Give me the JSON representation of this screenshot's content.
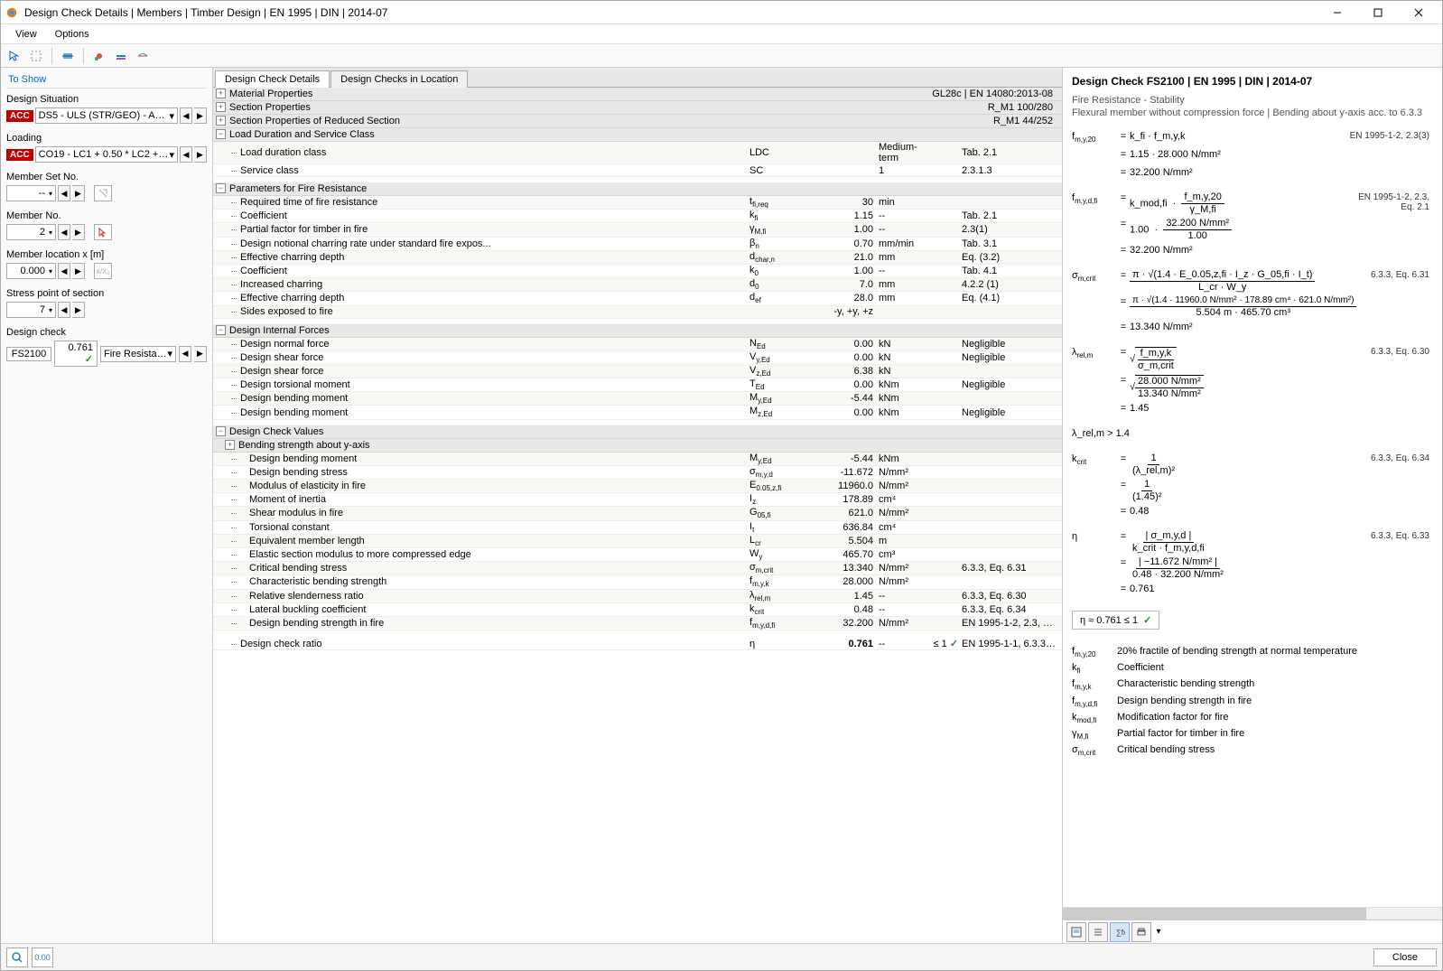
{
  "window": {
    "title": "Design Check Details | Members | Timber Design | EN 1995 | DIN | 2014-07"
  },
  "menu": {
    "view": "View",
    "options": "Options"
  },
  "left": {
    "toshow": "To Show",
    "design_situation_label": "Design Situation",
    "ds_badge": "ACC",
    "ds_value": "DS5 - ULS (STR/GEO) - Accident...",
    "loading_label": "Loading",
    "loading_badge": "ACC",
    "loading_value": "CO19 - LC1 + 0.50 * LC2 + 0.50 ...",
    "member_set_label": "Member Set No.",
    "member_set_value": "--",
    "member_no_label": "Member No.",
    "member_no_value": "2",
    "member_loc_label": "Member location x [m]",
    "member_loc_value": "0.000",
    "stress_point_label": "Stress point of section",
    "stress_point_value": "7",
    "design_check_label": "Design check",
    "dc_code": "FS2100",
    "dc_val": "0.761",
    "dc_desc": "Fire Resistance - ..."
  },
  "tabs": {
    "t1": "Design Check Details",
    "t2": "Design Checks in Location"
  },
  "sections": {
    "mat_props": "Material Properties",
    "mat_props_right": "GL28c | EN 14080:2013-08",
    "sec_props": "Section Properties",
    "sec_props_right": "R_M1 100/280",
    "sec_props_red": "Section Properties of Reduced Section",
    "sec_props_red_right": "R_M1 44/252",
    "load_dur": "Load Duration and Service Class",
    "ldc_label": "Load duration class",
    "ldc_sym": "LDC",
    "ldc_val": "Medium-term",
    "ldc_ref": "Tab. 2.1",
    "sc_label": "Service class",
    "sc_sym": "SC",
    "sc_val": "1",
    "sc_ref": "2.3.1.3",
    "fire_params": "Parameters for Fire Resistance",
    "fire": [
      {
        "l": "Required time of fire resistance",
        "s": "t_fi,req",
        "su": "fi,req",
        "v": "30",
        "u": "min",
        "r": ""
      },
      {
        "l": "Coefficient",
        "s": "k_fi",
        "su": "fi",
        "v": "1.15",
        "u": "--",
        "r": "Tab. 2.1"
      },
      {
        "l": "Partial factor for timber in fire",
        "s": "γ_M,fi",
        "su": "M,fi",
        "v": "1.00",
        "u": "--",
        "r": "2.3(1)"
      },
      {
        "l": "Design notional charring rate under standard fire expos...",
        "s": "β_n",
        "su": "n",
        "v": "0.70",
        "u": "mm/min",
        "r": "Tab. 3.1"
      },
      {
        "l": "Effective charring depth",
        "s": "d_char,n",
        "su": "char,n",
        "v": "21.0",
        "u": "mm",
        "r": "Eq. (3.2)"
      },
      {
        "l": "Coefficient",
        "s": "k_0",
        "su": "0",
        "v": "1.00",
        "u": "--",
        "r": "Tab. 4.1"
      },
      {
        "l": "Increased charring",
        "s": "d_0",
        "su": "0",
        "v": "7.0",
        "u": "mm",
        "r": "4.2.2 (1)"
      },
      {
        "l": "Effective charring depth",
        "s": "d_ef",
        "su": "ef",
        "v": "28.0",
        "u": "mm",
        "r": "Eq. (4.1)"
      },
      {
        "l": "Sides exposed to fire",
        "s": "",
        "su": "",
        "v": "-y, +y, +z",
        "u": "",
        "r": ""
      }
    ],
    "dif": "Design Internal Forces",
    "forces": [
      {
        "l": "Design normal force",
        "s": "N",
        "su": "Ed",
        "v": "0.00",
        "u": "kN",
        "r": "Negligible"
      },
      {
        "l": "Design shear force",
        "s": "V",
        "su": "y,Ed",
        "v": "0.00",
        "u": "kN",
        "r": "Negligible"
      },
      {
        "l": "Design shear force",
        "s": "V",
        "su": "z,Ed",
        "v": "6.38",
        "u": "kN",
        "r": ""
      },
      {
        "l": "Design torsional moment",
        "s": "T",
        "su": "Ed",
        "v": "0.00",
        "u": "kNm",
        "r": "Negligible"
      },
      {
        "l": "Design bending moment",
        "s": "M",
        "su": "y,Ed",
        "v": "-5.44",
        "u": "kNm",
        "r": ""
      },
      {
        "l": "Design bending moment",
        "s": "M",
        "su": "z,Ed",
        "v": "0.00",
        "u": "kNm",
        "r": "Negligible"
      }
    ],
    "dcv": "Design Check Values",
    "bend": "Bending strength about y-axis",
    "values": [
      {
        "l": "Design bending moment",
        "s": "M",
        "su": "y,Ed",
        "v": "-5.44",
        "u": "kNm",
        "r": ""
      },
      {
        "l": "Design bending stress",
        "s": "σ",
        "su": "m,y,d",
        "v": "-11.672",
        "u": "N/mm²",
        "r": ""
      },
      {
        "l": "Modulus of elasticity in fire",
        "s": "E",
        "su": "0.05,z,fi",
        "v": "11960.0",
        "u": "N/mm²",
        "r": ""
      },
      {
        "l": "Moment of inertia",
        "s": "I",
        "su": "z",
        "v": "178.89",
        "u": "cm⁴",
        "r": ""
      },
      {
        "l": "Shear modulus in fire",
        "s": "G",
        "su": "05,fi",
        "v": "621.0",
        "u": "N/mm²",
        "r": ""
      },
      {
        "l": "Torsional constant",
        "s": "I",
        "su": "t",
        "v": "636.84",
        "u": "cm⁴",
        "r": ""
      },
      {
        "l": "Equivalent member length",
        "s": "L",
        "su": "cr",
        "v": "5.504",
        "u": "m",
        "r": ""
      },
      {
        "l": "Elastic section modulus to more compressed edge",
        "s": "W",
        "su": "y",
        "v": "465.70",
        "u": "cm³",
        "r": ""
      },
      {
        "l": "Critical bending stress",
        "s": "σ",
        "su": "m,crit",
        "v": "13.340",
        "u": "N/mm²",
        "r": "6.3.3, Eq. 6.31"
      },
      {
        "l": "Characteristic bending strength",
        "s": "f",
        "su": "m,y,k",
        "v": "28.000",
        "u": "N/mm²",
        "r": ""
      },
      {
        "l": "Relative slenderness ratio",
        "s": "λ",
        "su": "rel,m",
        "v": "1.45",
        "u": "--",
        "r": "6.3.3, Eq. 6.30"
      },
      {
        "l": "Lateral buckling coefficient",
        "s": "k",
        "su": "crit",
        "v": "0.48",
        "u": "--",
        "r": "6.3.3, Eq. 6.34"
      },
      {
        "l": "Design bending strength in fire",
        "s": "f",
        "su": "m,y,d,fi",
        "v": "32.200",
        "u": "N/mm²",
        "r": "EN 1995-1-2, 2.3, Eq. 2.1"
      }
    ],
    "ratio": {
      "l": "Design check ratio",
      "s": "η",
      "v": "0.761",
      "u": "--",
      "cond": "≤ 1",
      "r": "EN 1995-1-1, 6.3.3, Eq. 6..."
    }
  },
  "right": {
    "title": "Design Check FS2100 | EN 1995 | DIN | 2014-07",
    "sub1": "Fire Resistance - Stability",
    "sub2": "Flexural member without compression force | Bending about y-axis acc. to 6.3.3",
    "f1_sym": "f_m,y,20",
    "f1_ref": "EN 1995-1-2, 2.3(3)",
    "f1a": "k_fi  ·  f_m,y,k",
    "f1b": "1.15  ·  28.000 N/mm²",
    "f1c": "32.200 N/mm²",
    "f2_sym": "f_m,y,d,fi",
    "f2_ref": "EN 1995-1-2, 2.3, Eq. 2.1",
    "f2a_l": "k_mod,fi",
    "f2a_num": "f_m,y,20",
    "f2a_den": "γ_M,fi",
    "f2b_l": "1.00",
    "f2b_num": "32.200 N/mm²",
    "f2b_den": "1.00",
    "f2c": "32.200 N/mm²",
    "f3_sym": "σ_m,crit",
    "f3_ref": "6.3.3, Eq. 6.31",
    "f3a_num": "π  ·  √(1.4  ·  E_0.05,z,fi  ·  I_z  ·  G_05,fi  ·  I_t)",
    "f3a_den": "L_cr  ·  W_y",
    "f3b_num": "π  ·  √(1.4  ·  11960.0 N/mm²  ·  178.89 cm⁴  ·  621.0 N/mm²)",
    "f3b_den": "5.504 m  ·  465.70 cm³",
    "f3c": "13.340 N/mm²",
    "f4_sym": "λ_rel,m",
    "f4_ref": "6.3.3, Eq. 6.30",
    "f4a_num": "f_m,y,k",
    "f4a_den": "σ_m,crit",
    "f4b_num": "28.000 N/mm²",
    "f4b_den": "13.340 N/mm²",
    "f4c": "1.45",
    "f5": "λ_rel,m  >  1.4",
    "f6_sym": "k_crit",
    "f6_ref": "6.3.3, Eq. 6.34",
    "f6a_num": "1",
    "f6a_den": "(λ_rel,m)²",
    "f6b_num": "1",
    "f6b_den": "(1.45)²",
    "f6c": "0.48",
    "f7_sym": "η",
    "f7_ref": "6.3.3, Eq. 6.33",
    "f7a_num": "| σ_m,y,d |",
    "f7a_den": "k_crit  ·  f_m,y,d,fi",
    "f7b_num": "| −11.672 N/mm² |",
    "f7b_den": "0.48  ·  32.200 N/mm²",
    "f7c": "0.761",
    "final": "η    ≈    0.761  ≤ 1",
    "legend": [
      {
        "s": "f_m,y,20",
        "d": "20% fractile of bending strength at normal temperature"
      },
      {
        "s": "k_fi",
        "d": "Coefficient"
      },
      {
        "s": "f_m,y,k",
        "d": "Characteristic bending strength"
      },
      {
        "s": "f_m,y,d,fi",
        "d": "Design bending strength in fire"
      },
      {
        "s": "k_mod,fi",
        "d": "Modification factor for fire"
      },
      {
        "s": "γ_M,fi",
        "d": "Partial factor for timber in fire"
      },
      {
        "s": "σ_m,crit",
        "d": "Critical bending stress"
      }
    ]
  },
  "footer": {
    "close": "Close"
  },
  "colors": {
    "accent": "#0066cc",
    "badge": "#c00000",
    "ok": "#2a8a2a",
    "border": "#aaaaaa",
    "alt_row": "#f9f8f4",
    "section_bg": "#e8e8e8"
  }
}
